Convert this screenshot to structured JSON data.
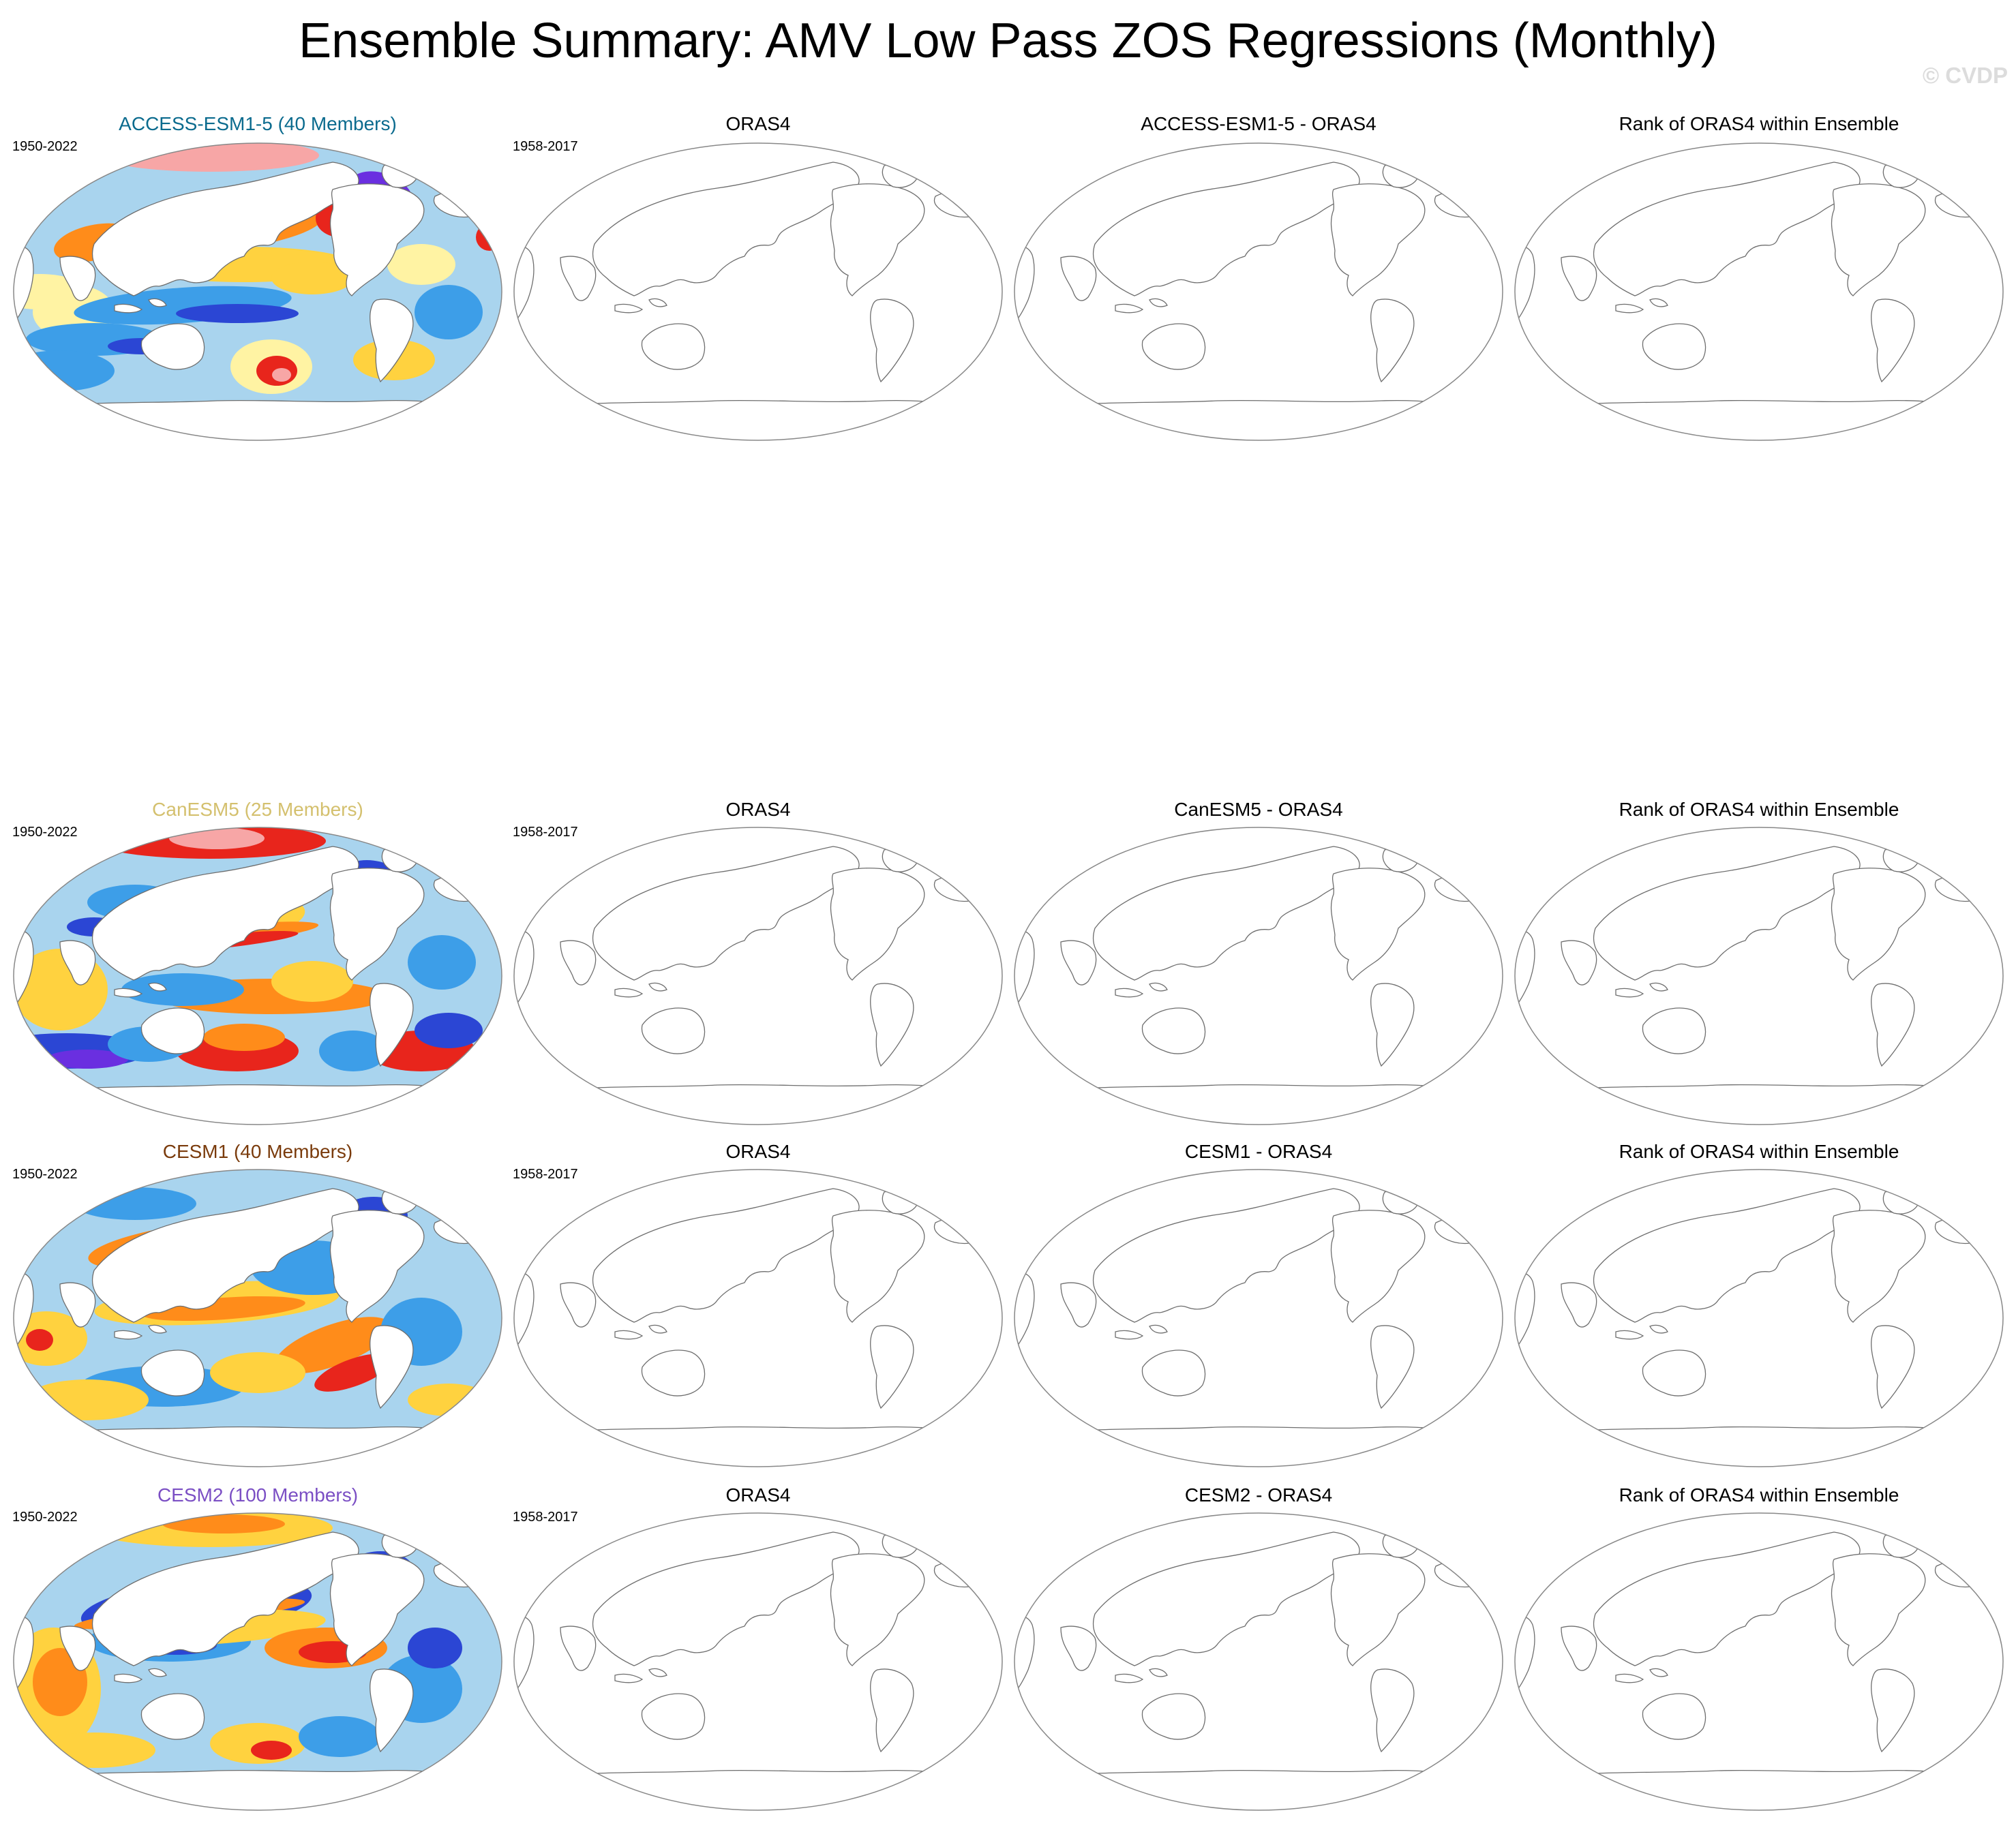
{
  "title": "Ensemble Summary: AMV Low Pass ZOS Regressions (Monthly)",
  "watermark": "© CVDP",
  "reference_name": "ORAS4",
  "rank_title": "Rank of ORAS4 within Ensemble",
  "rows": [
    {
      "model_title": "ACCESS-ESM1-5 (40 Members)",
      "model_color": "#0b6b8e",
      "model_period": "1950-2022",
      "obs_title": "ORAS4",
      "obs_period": "1958-2017",
      "diff_title": "ACCESS-ESM1-5 - ORAS4",
      "rank_title": "Rank of ORAS4 within Ensemble"
    },
    {
      "model_title": "CanESM5 (25 Members)",
      "model_color": "#d4c06e",
      "model_period": "1950-2022",
      "obs_title": "ORAS4",
      "obs_period": "1958-2017",
      "diff_title": "CanESM5 - ORAS4",
      "rank_title": "Rank of ORAS4 within Ensemble"
    },
    {
      "model_title": "CESM1 (40 Members)",
      "model_color": "#7a3b0c",
      "model_period": "1950-2022",
      "obs_title": "ORAS4",
      "obs_period": "1958-2017",
      "diff_title": "CESM1 - ORAS4",
      "rank_title": "Rank of ORAS4 within Ensemble"
    },
    {
      "model_title": "CESM2 (100 Members)",
      "model_color": "#7b4fc4",
      "model_period": "1950-2022",
      "obs_title": "ORAS4",
      "obs_period": "1958-2017",
      "diff_title": "CESM2 - ORAS4",
      "rank_title": "Rank of ORAS4 within Ensemble"
    }
  ],
  "colors": {
    "ocean_base": "#a9d4ee",
    "land": "#ffffff",
    "coast": "#6e6e6e",
    "palette": [
      "#6a2fe0",
      "#2b46d4",
      "#3d9ee8",
      "#a9d4ee",
      "#fff3a3",
      "#ffd23f",
      "#ff8c1a",
      "#e8251c",
      "#f7a6a6"
    ]
  }
}
